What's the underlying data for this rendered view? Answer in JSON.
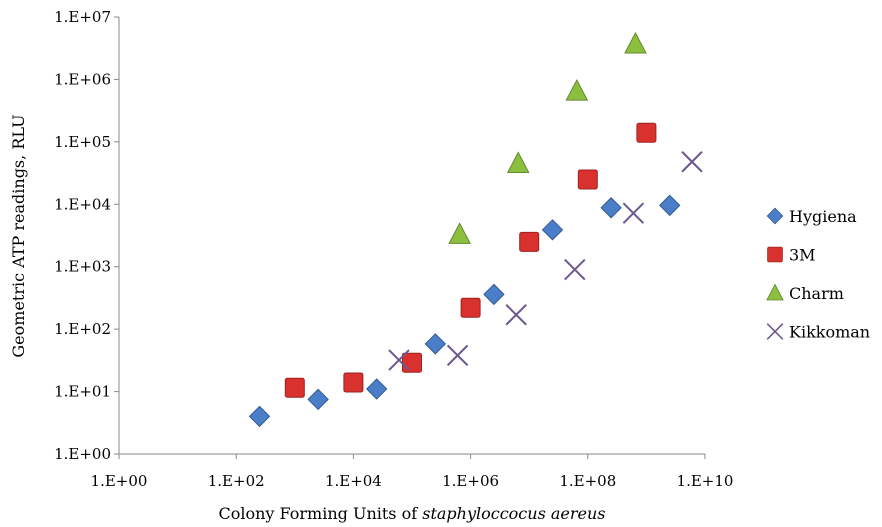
{
  "chart_data": {
    "type": "scatter",
    "title": "",
    "xlabel_prefix": "Colony Forming Units of ",
    "xlabel_italic": "staphyloccocus aereus",
    "ylabel": "Geometric ATP readings, RLU",
    "xscale": "log",
    "yscale": "log",
    "xlim": [
      1,
      10000000000
    ],
    "ylim": [
      1,
      10000000
    ],
    "x_ticks": [
      1,
      100,
      10000,
      1000000,
      100000000,
      10000000000
    ],
    "x_tick_labels": [
      "1.E+00",
      "1.E+02",
      "1.E+04",
      "1.E+06",
      "1.E+08",
      "1.E+10"
    ],
    "y_ticks": [
      1,
      10,
      100,
      1000,
      10000,
      100000,
      1000000,
      10000000
    ],
    "y_tick_labels": [
      "1.E+00",
      "1.E+01",
      "1.E+02",
      "1.E+03",
      "1.E+04",
      "1.E+05",
      "1.E+06",
      "1.E+07"
    ],
    "grid": false,
    "legend_position": "right",
    "series": [
      {
        "name": "Hygiena",
        "marker": "diamond",
        "color": "#4a7ec9",
        "points": [
          [
            250,
            4
          ],
          [
            2500,
            7.5
          ],
          [
            25000,
            11
          ],
          [
            250000,
            58
          ],
          [
            2500000,
            360
          ],
          [
            25000000,
            3900
          ],
          [
            250000000,
            8800
          ],
          [
            2500000000,
            9600
          ]
        ]
      },
      {
        "name": "3M",
        "marker": "square",
        "color": "#d9312d",
        "points": [
          [
            1000,
            11.5
          ],
          [
            10000,
            14
          ],
          [
            100000,
            29
          ],
          [
            1000000,
            220
          ],
          [
            10000000,
            2500
          ],
          [
            100000000,
            25000
          ],
          [
            1000000000,
            140000
          ]
        ]
      },
      {
        "name": "Charm",
        "marker": "triangle",
        "color": "#8cbf3e",
        "points": [
          [
            650000,
            3300
          ],
          [
            6500000,
            45000
          ],
          [
            65000000,
            650000
          ],
          [
            650000000,
            3700000
          ]
        ]
      },
      {
        "name": "Kikkoman",
        "marker": "x",
        "color": "#6e5891",
        "points": [
          [
            60000,
            32
          ],
          [
            600000,
            38
          ],
          [
            6000000,
            170
          ],
          [
            60000000,
            900
          ],
          [
            600000000,
            7200
          ],
          [
            6000000000,
            48000
          ]
        ]
      }
    ]
  }
}
